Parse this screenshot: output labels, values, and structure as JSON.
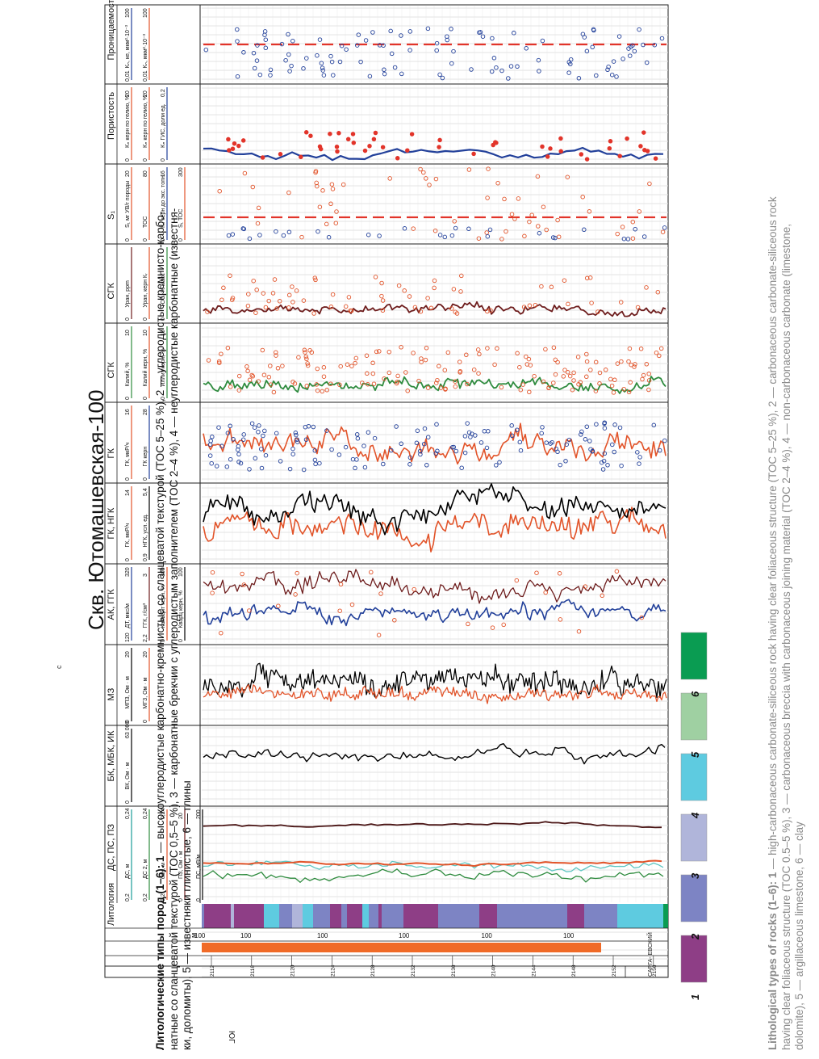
{
  "figure": {
    "title": "Скв. Ютомашевская-100",
    "header_note": "с",
    "depth_ticks": [
      "2112",
      "2116",
      "2120",
      "2124",
      "2128",
      "2132",
      "2136",
      "2140",
      "2144",
      "2148",
      "2152",
      "2156"
    ],
    "depth_unit": "м",
    "stratigraphy": {
      "upper": "ЮГ",
      "lower": "САРГА- ЕВСКИЙ"
    },
    "core_label": "100",
    "core_recovery_values": [
      "100",
      "100",
      "100",
      "100",
      "100"
    ],
    "lithology_header": "Литология",
    "tracks": [
      {
        "title": "ДС, ПС, ПЗ",
        "scales": [
          {
            "label": "ДС, м",
            "min": "0,2",
            "max": "0,24",
            "color": "#1a9c98"
          },
          {
            "label": "ДС 2, м",
            "min": "0,2",
            "max": "0,24",
            "color": "#2e8b3e"
          },
          {
            "label": "dsн, м",
            "min": "0,2",
            "max": "0,24",
            "color": "#e2542a"
          },
          {
            "label": "ПЗ, Ом · м",
            "min": "0",
            "max": "20",
            "color": "#6e1d1d"
          },
          {
            "label": "ПС, мВ/м",
            "min": "0",
            "max": "200",
            "color": "#000000"
          }
        ]
      },
      {
        "title": "БК, МБК, ИК",
        "scales": [
          {
            "label": "ВК, Ом · м",
            "min": "0",
            "max": "63 000",
            "color": "#000000"
          }
        ]
      },
      {
        "title": "МЗ",
        "scales": [
          {
            "label": "МПЗ, Ом · м",
            "min": "0",
            "max": "20",
            "color": "#000000"
          },
          {
            "label": "МГЗ, Ом · м",
            "min": "0",
            "max": "20",
            "color": "#e2542a"
          }
        ]
      },
      {
        "title": "АК, ГГК",
        "scales": [
          {
            "label": "ДТ, мкс/м",
            "min": "120",
            "max": "320",
            "color": "#22409a"
          },
          {
            "label": "ГГК, г/см³",
            "min": "2,2",
            "max": "3",
            "color": "#6e1d1d"
          },
          {
            "label": "Кальцит керн, %",
            "min": "0",
            "max": "100",
            "color": "#e2542a"
          },
          {
            "label": "Кварц керн, %",
            "min": "0",
            "max": "100",
            "color": "#000000"
          }
        ]
      },
      {
        "title": "ГК, НГК",
        "scales": [
          {
            "label": "ГК, мкР/ч",
            "min": "0",
            "max": "14",
            "color": "#e2542a"
          },
          {
            "label": "НГК, усл. ед.",
            "min": "0,9",
            "max": "5,4",
            "color": "#000000"
          }
        ]
      },
      {
        "title": "ГК",
        "scales": [
          {
            "label": "ГК, мкР/ч",
            "min": "0",
            "max": "16",
            "color": "#e2542a"
          },
          {
            "label": "ГК керн",
            "min": "0",
            "max": "28",
            "color": "#22409a"
          }
        ]
      },
      {
        "title": "СГК",
        "scales": [
          {
            "label": "Калий, %",
            "min": "0",
            "max": "10",
            "color": "#2e8b3e"
          },
          {
            "label": "Калий керн, %",
            "min": "0",
            "max": "10",
            "color": "#e2542a"
          },
          {
            "label": "Иллит керн, %",
            "min": "0",
            "max": "10",
            "color": "#2e8b3e"
          }
        ]
      },
      {
        "title": "СГК",
        "scales": [
          {
            "label": "Уран, ppm",
            "min": "0",
            "max": "",
            "color": "#6e1d1d"
          },
          {
            "label": "Уран, керн Кᵣ",
            "min": "0",
            "max": "",
            "color": "#e2542a"
          },
          {
            "label": "ТОС, % масс",
            "min": "0",
            "max": "",
            "color": "#2e8b3e"
          }
        ]
      },
      {
        "title": "S₁",
        "scales": [
          {
            "label": "S₁ мг УВ/г породы",
            "min": "0",
            "max": "20",
            "color": "#e2542a"
          },
          {
            "label": "ТОС",
            "min": "0",
            "max": "80",
            "color": "#e2542a"
          },
          {
            "label": "Kₙ керн до экс. топн.",
            "min": "0",
            "max": "16",
            "color": "#22409a"
          },
          {
            "label": "S₁ ТОС",
            "min": "0",
            "max": "300",
            "color": "#e2542a"
          }
        ]
      },
      {
        "title": "Пористость",
        "scales": [
          {
            "label": "Kₙ керн по гелию, %",
            "min": "0",
            "max": "20",
            "color": "#e2542a"
          },
          {
            "label": "Kₙ керн по гелию, %",
            "min": "0",
            "max": "20",
            "color": "#e2542a"
          },
          {
            "label": "Kₙ ГИС, доли ед.",
            "min": "0",
            "max": "0,2",
            "color": "#22409a"
          }
        ]
      },
      {
        "title": "Проницаемость",
        "scales": [
          {
            "label": "Kₙ, ке, мкм²·10⁻³",
            "min": "0,01",
            "max": "100",
            "color": "#22409a"
          },
          {
            "label": "Kₙ, мкм²·10⁻³",
            "min": "0,01",
            "max": "100",
            "color": "#e2542a"
          }
        ]
      }
    ],
    "legend": [
      {
        "number": "1",
        "color": "#8e3e86"
      },
      {
        "number": "2",
        "color": "#7d84c4"
      },
      {
        "number": "3",
        "color": "#b0b5da"
      },
      {
        "number": "4",
        "color": "#5ecbe0"
      },
      {
        "number": "5",
        "color": "#9fd0a2"
      },
      {
        "number": "6",
        "color": "#0a9c52"
      }
    ]
  },
  "caption_ru": {
    "lead": "Литологические типы пород (1–6): 1",
    "line1": " — высокоуглеродистые карбонатно-кремнистые со сланцеватой текстурой (TOC 5–25 %), 2 — углеродистые кремнисто-карбо-",
    "line2": "натные со сланцеватой текстурой (TOC 0,5–5 %), 3 — карбонатные брекчии с углеродистым заполнителем (TOC 2–4 %), 4 — неуглеродистые карбонатные (известня-",
    "line3": "ки, доломиты), 5 — известняки глинистые, 6 — глины"
  },
  "caption_en": {
    "lead": "Lithological types of rocks (1–6): 1",
    "line1": " — high-carbonaceous carbonate-siliceous rock having clear foliaceous structure (TOC 5–25 %), 2 — carbonaceous carbonate-siliceous rock",
    "line2": "having clear foliaceous structure (TOC 0.5–5 %), 3 — carbonaceous breccia with carbonaceous joining material (TOC 2–4 %), 4 — non-carbonaceous carbonate (limestone,",
    "line3": "dolomite), 5 — argillaceous limestone, 6 — clay"
  }
}
